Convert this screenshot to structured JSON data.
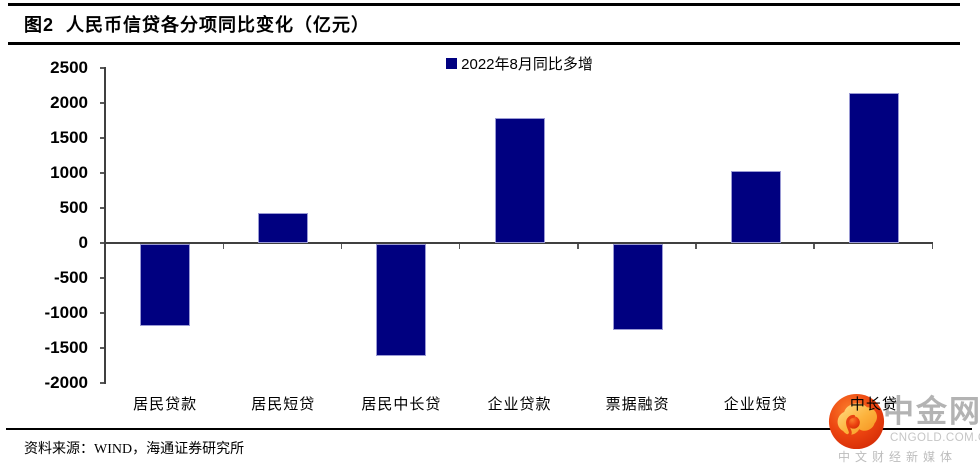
{
  "header": {
    "title": "图2  人民币信贷各分项同比变化（亿元）"
  },
  "chart_data": {
    "type": "bar",
    "title": "人民币信贷各分项同比变化（亿元）",
    "legend": "2022年8月同比多增",
    "legend_position": "top-center",
    "categories": [
      "居民贷款",
      "居民短贷",
      "居民中长贷",
      "企业贷款",
      "票据融资",
      "企业短贷",
      "中长贷"
    ],
    "values": [
      -1175,
      426,
      -1601,
      1787,
      -1222,
      1028,
      2138
    ],
    "unit": "亿元",
    "ylim": [
      -2000,
      2500
    ],
    "yticks": [
      2500,
      2000,
      1500,
      1000,
      500,
      0,
      -500,
      -1000,
      -1500,
      -2000
    ],
    "xlabel": "",
    "ylabel": "",
    "grid": false,
    "bar_color": "#000080",
    "axis_color": "#404040",
    "tick_color": "#595959"
  },
  "footer": {
    "source": "资料来源：WIND，海通证券研究所"
  },
  "watermark": {
    "logo": "cngold-cloud-logo",
    "brand": "中金网",
    "domain": "CNGOLD.COM.CN",
    "tagline": "中文财经新媒体",
    "brand_color": "#e8380d"
  }
}
